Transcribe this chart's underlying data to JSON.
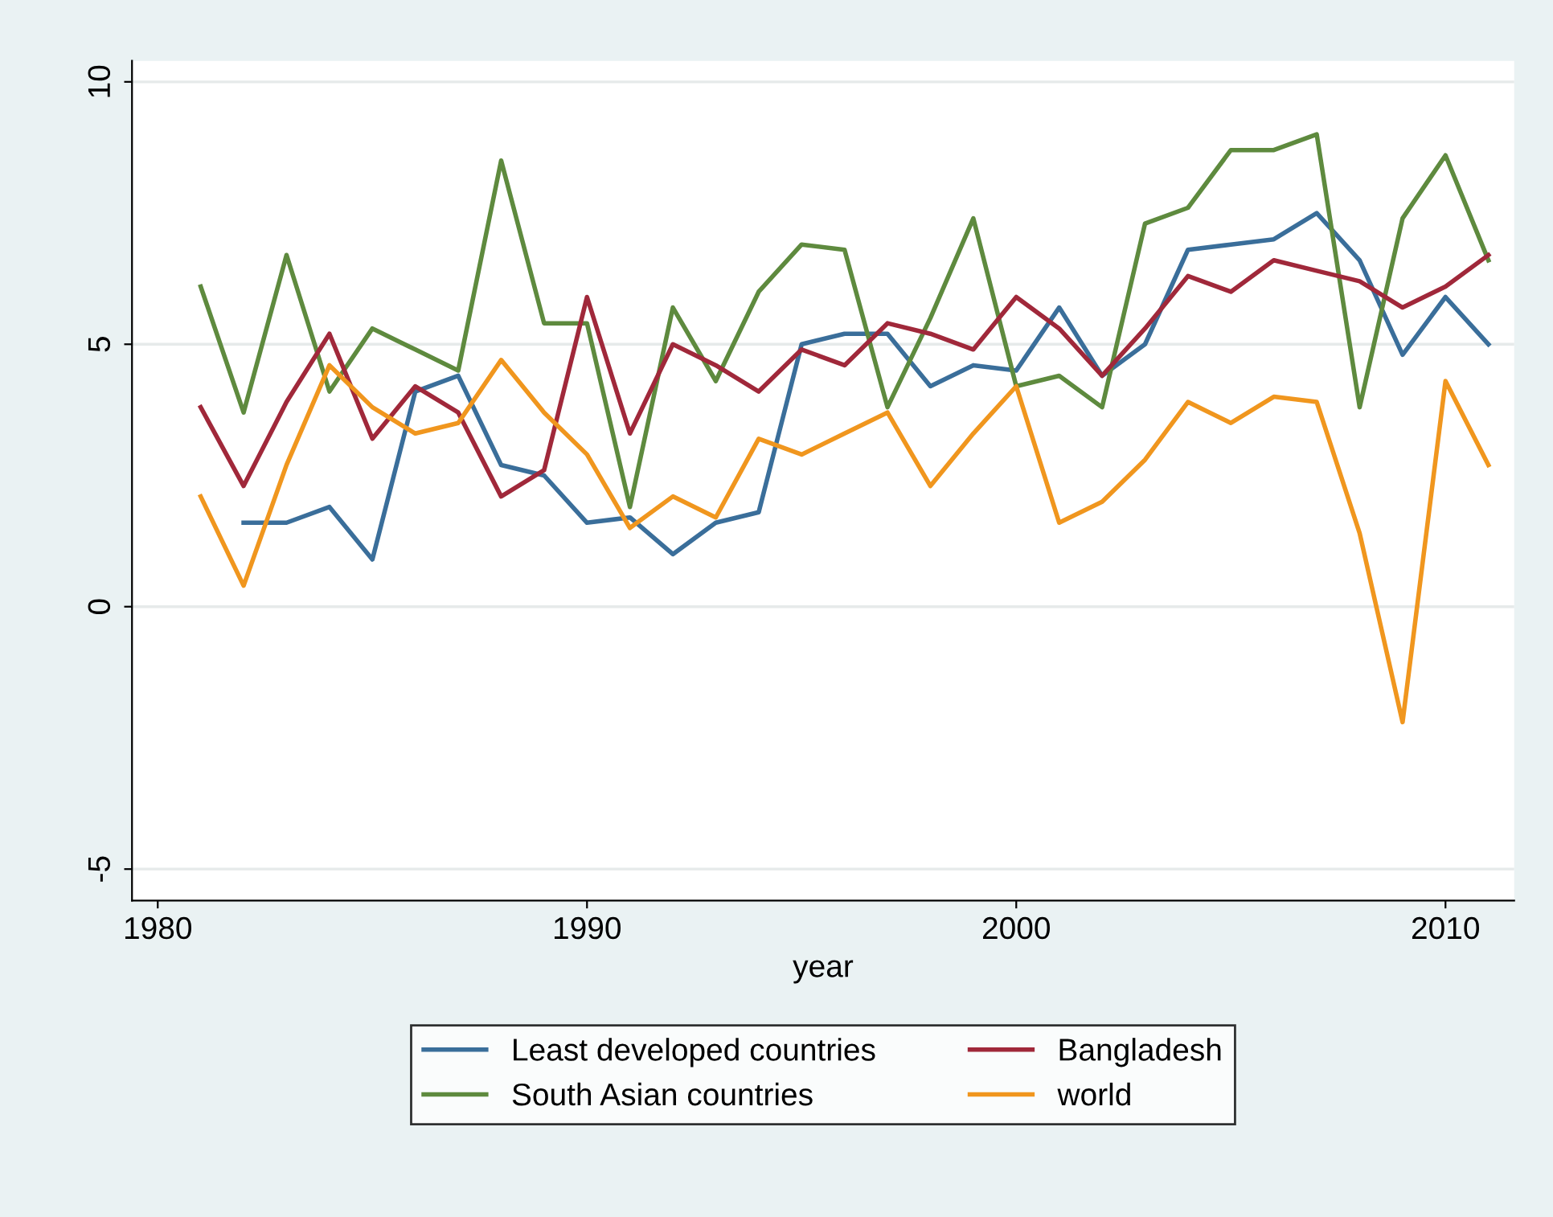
{
  "chart_data": {
    "type": "line",
    "xlabel": "year",
    "x": [
      1981,
      1982,
      1983,
      1984,
      1985,
      1986,
      1987,
      1988,
      1989,
      1990,
      1991,
      1992,
      1993,
      1994,
      1995,
      1996,
      1997,
      1998,
      1999,
      2000,
      2001,
      2002,
      2003,
      2004,
      2005,
      2006,
      2007,
      2008,
      2009,
      2010,
      2011
    ],
    "series": [
      {
        "name": "Least developed countries",
        "color": "#3a6e9a",
        "values": [
          null,
          1.6,
          1.6,
          1.9,
          0.9,
          4.1,
          4.4,
          2.7,
          2.5,
          1.6,
          1.7,
          1.0,
          1.6,
          1.8,
          5.0,
          5.2,
          5.2,
          4.2,
          4.6,
          4.5,
          5.7,
          4.4,
          5.0,
          6.8,
          6.9,
          7.0,
          7.5,
          6.6,
          4.8,
          5.9,
          5.0
        ]
      },
      {
        "name": "South Asian countries",
        "color": "#5e8a3e",
        "values": [
          6.1,
          3.7,
          6.7,
          4.1,
          5.3,
          4.9,
          4.5,
          8.5,
          5.4,
          5.4,
          1.9,
          5.7,
          4.3,
          6.0,
          6.9,
          6.8,
          3.8,
          5.5,
          7.4,
          4.2,
          4.4,
          3.8,
          7.3,
          7.6,
          8.7,
          8.7,
          9.0,
          3.8,
          7.4,
          8.6,
          6.6
        ]
      },
      {
        "name": "Bangladesh",
        "color": "#a0283a",
        "values": [
          3.8,
          2.3,
          3.9,
          5.2,
          3.2,
          4.2,
          3.7,
          2.1,
          2.6,
          5.9,
          3.3,
          5.0,
          4.6,
          4.1,
          4.9,
          4.6,
          5.4,
          5.2,
          4.9,
          5.9,
          5.3,
          4.4,
          5.3,
          6.3,
          6.0,
          6.6,
          6.4,
          6.2,
          5.7,
          6.1,
          6.7
        ]
      },
      {
        "name": "world",
        "color": "#f0961e",
        "values": [
          2.1,
          0.4,
          2.7,
          4.6,
          3.8,
          3.3,
          3.5,
          4.7,
          3.7,
          2.9,
          1.5,
          2.1,
          1.7,
          3.2,
          2.9,
          3.3,
          3.7,
          2.3,
          3.3,
          4.2,
          1.6,
          2.0,
          2.8,
          3.9,
          3.5,
          4.0,
          3.9,
          1.4,
          -2.2,
          4.3,
          2.7
        ]
      }
    ],
    "xlim": [
      1979.4,
      2011.6
    ],
    "ylim": [
      -5.6,
      10.4
    ],
    "xticks": [
      1980,
      1990,
      2000,
      2010
    ],
    "yticks": [
      -5,
      0,
      5,
      10
    ],
    "grid": "y",
    "legend": "bottom"
  }
}
